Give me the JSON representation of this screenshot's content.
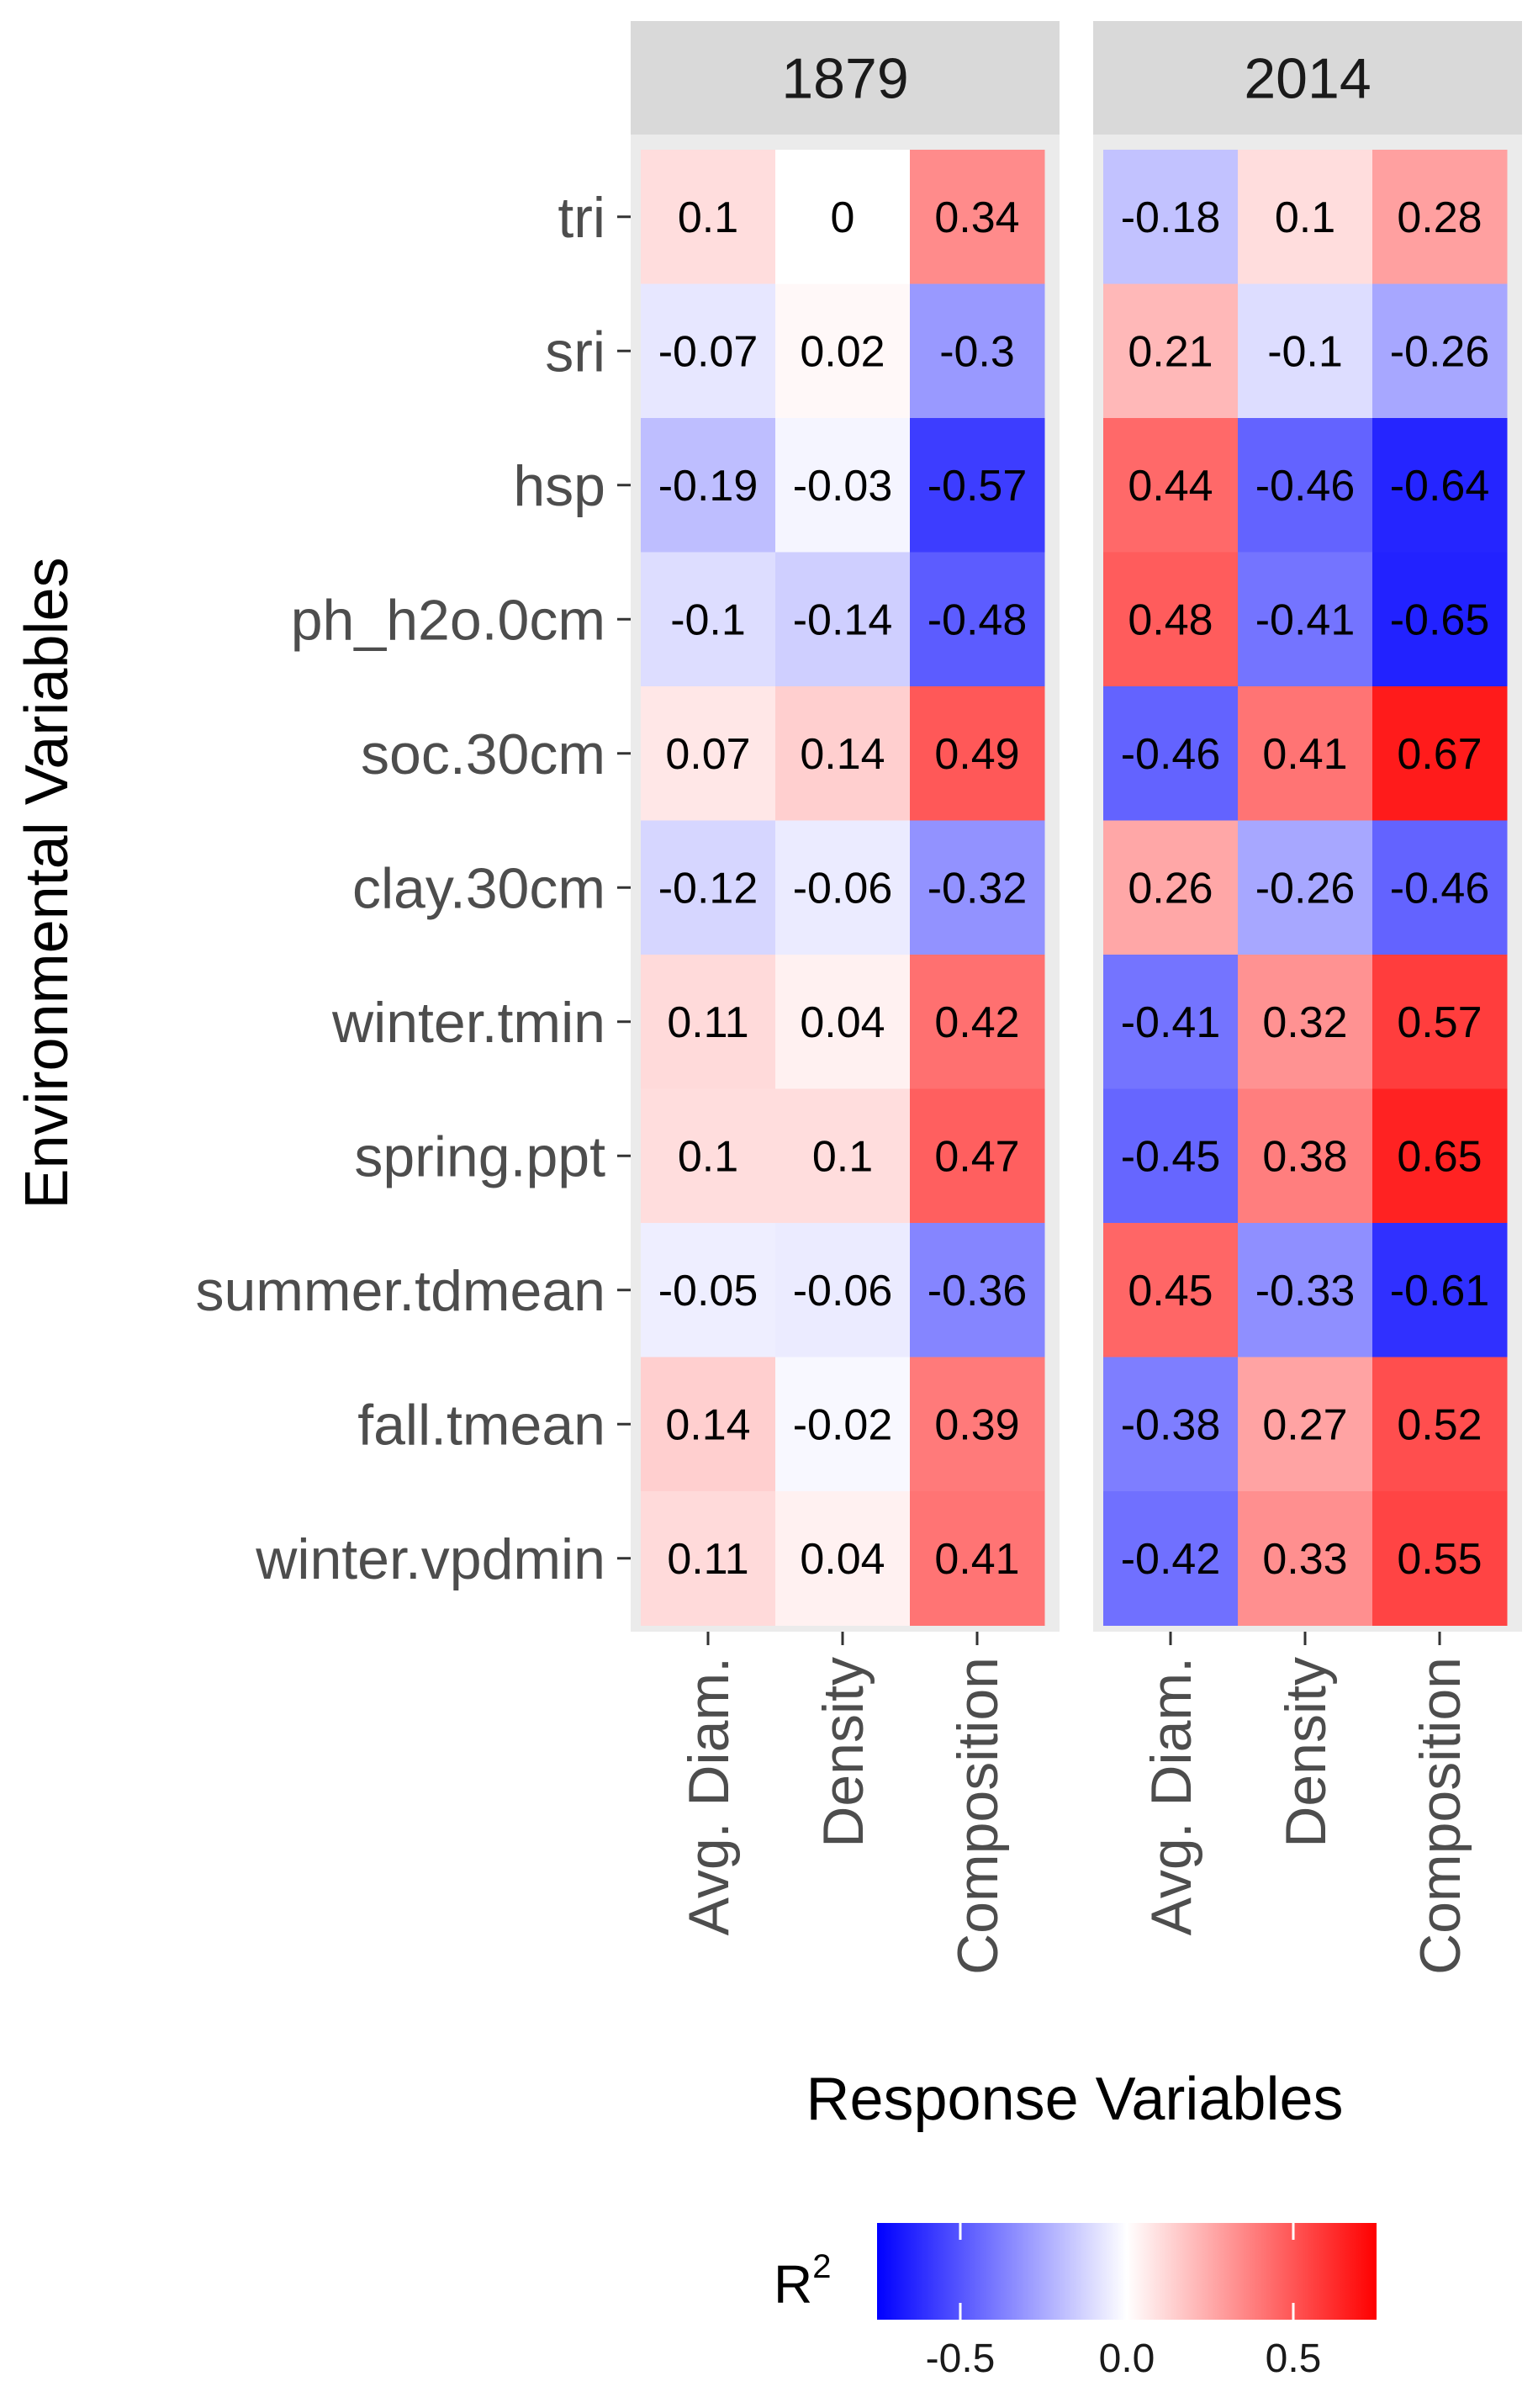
{
  "chart_data": {
    "type": "heatmap",
    "xlabel": "Response Variables",
    "ylabel": "Environmental Variables",
    "panels": [
      "1879",
      "2014"
    ],
    "columns": [
      "Avg. Diam.",
      "Density",
      "Composition"
    ],
    "rows": [
      "tri",
      "sri",
      "hsp",
      "ph_h2o.0cm",
      "soc.30cm",
      "clay.30cm",
      "winter.tmin",
      "spring.ppt",
      "summer.tdmean",
      "fall.tmean",
      "winter.vpdmin"
    ],
    "values": {
      "1879": [
        [
          0.1,
          0,
          0.34
        ],
        [
          -0.07,
          0.02,
          -0.3
        ],
        [
          -0.19,
          -0.03,
          -0.57
        ],
        [
          -0.1,
          -0.14,
          -0.48
        ],
        [
          0.07,
          0.14,
          0.49
        ],
        [
          -0.12,
          -0.06,
          -0.32
        ],
        [
          0.11,
          0.04,
          0.42
        ],
        [
          0.1,
          0.1,
          0.47
        ],
        [
          -0.05,
          -0.06,
          -0.36
        ],
        [
          0.14,
          -0.02,
          0.39
        ],
        [
          0.11,
          0.04,
          0.41
        ]
      ],
      "2014": [
        [
          -0.18,
          0.1,
          0.28
        ],
        [
          0.21,
          -0.1,
          -0.26
        ],
        [
          0.44,
          -0.46,
          -0.64
        ],
        [
          0.48,
          -0.41,
          -0.65
        ],
        [
          -0.46,
          0.41,
          0.67
        ],
        [
          0.26,
          -0.26,
          -0.46
        ],
        [
          -0.41,
          0.32,
          0.57
        ],
        [
          -0.45,
          0.38,
          0.65
        ],
        [
          0.45,
          -0.33,
          -0.61
        ],
        [
          -0.38,
          0.27,
          0.52
        ],
        [
          -0.42,
          0.33,
          0.55
        ]
      ]
    },
    "legend": {
      "title_base": "R",
      "title_superscript": "2",
      "ticks": [
        "-0.5",
        "0.0",
        "0.5"
      ],
      "tick_values": [
        -0.5,
        0.0,
        0.5
      ],
      "limits": [
        -0.75,
        0.75
      ],
      "position": "bottom"
    },
    "colors": {
      "low": "#0000ff",
      "mid": "#ffffff",
      "high": "#ff0000",
      "panel_bg": "#ebebeb",
      "strip_bg": "#d9d9d9"
    }
  }
}
